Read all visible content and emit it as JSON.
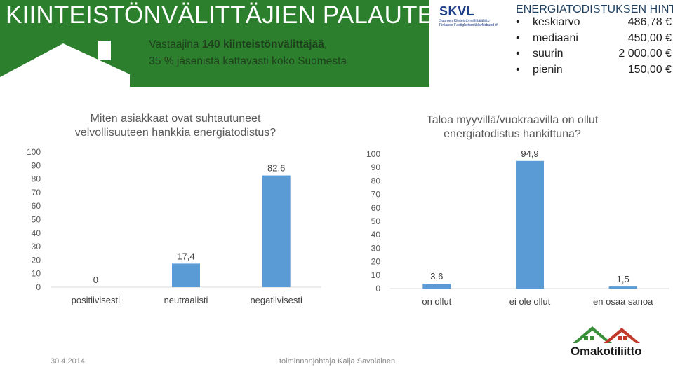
{
  "header": {
    "title": "KIINTEISTÖNVÄLITTÄJIEN PALAUTE",
    "subtitle_line1_prefix": "Vastaajina ",
    "subtitle_line1_bold": "140 kiinteistönvälittäjää",
    "subtitle_line1_suffix": ",",
    "subtitle_line2": "35 % jäsenistä kattavasti koko Suomesta"
  },
  "logo_skvl": {
    "name": "SKVL",
    "line1": "Suomen Kiinteistönvälittäjäliitto",
    "line2": "Finlands Fastighetsmäklarförbund rf"
  },
  "stats": {
    "title": "ENERGIATODISTUKSEN HINTA",
    "rows": [
      {
        "label": "keskiarvo",
        "value": "486,78 €"
      },
      {
        "label": "mediaani",
        "value": "450,00 €"
      },
      {
        "label": "suurin",
        "value": "2 000,00 €"
      },
      {
        "label": "pienin",
        "value": "150,00 €"
      }
    ]
  },
  "chart_data": [
    {
      "type": "bar",
      "title": "Miten asiakkaat ovat suhtautuneet velvollisuuteen hankkia energiatodistus?",
      "title_line1": "Miten asiakkaat ovat suhtautuneet",
      "title_line2": "velvollisuuteen hankkia energiatodistus?",
      "categories": [
        "positiivisesti",
        "neutraalisti",
        "negatiivisesti"
      ],
      "values": [
        0,
        17.4,
        82.6
      ],
      "value_labels": [
        "0",
        "17,4",
        "82,6"
      ],
      "y_ticks": [
        "0",
        "10",
        "20",
        "30",
        "40",
        "50",
        "60",
        "70",
        "80",
        "90",
        "100"
      ],
      "ylim": [
        0,
        100
      ],
      "color": "#5b9bd5",
      "grid": false
    },
    {
      "type": "bar",
      "title": "Taloa myyvillä/vuokraavilla on ollut energiatodistus hankittuna?",
      "title_line1": "Taloa myyvillä/vuokraavilla on ollut",
      "title_line2": "energiatodistus hankittuna?",
      "categories": [
        "on ollut",
        "ei ole ollut",
        "en osaa sanoa"
      ],
      "values": [
        3.6,
        94.9,
        1.5
      ],
      "value_labels": [
        "3,6",
        "94,9",
        "1,5"
      ],
      "y_ticks": [
        "0",
        "10",
        "20",
        "30",
        "40",
        "50",
        "60",
        "70",
        "80",
        "90",
        "100"
      ],
      "ylim": [
        0,
        100
      ],
      "color": "#5b9bd5",
      "grid": false
    }
  ],
  "footer": {
    "date": "30.4.2014",
    "author": "toiminnanjohtaja Kaija Savolainen"
  },
  "logo_omakoti": {
    "name": "Omakotiliitto"
  }
}
